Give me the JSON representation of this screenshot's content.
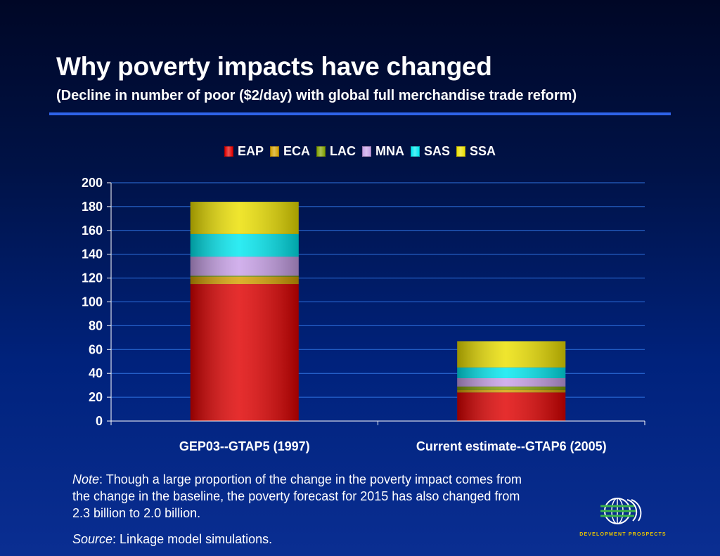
{
  "slide": {
    "title": "Why poverty impacts have changed",
    "subtitle": "(Decline in number of poor ($2/day) with global full merchandise trade reform)"
  },
  "note": {
    "label": "Note",
    "text": ": Though a large proportion of the change in the poverty impact comes from the change in the baseline, the poverty forecast for 2015 has also changed from 2.3 billion to 2.0 billion."
  },
  "source": {
    "label": "Source",
    "text": ": Linkage model simulations."
  },
  "logo": {
    "text": "DEVELOPMENT PROSPECTS"
  },
  "chart_data": {
    "type": "bar",
    "stacked": true,
    "categories": [
      "GEP03--GTAP5 (1997)",
      "Current estimate--GTAP6 (2005)"
    ],
    "series": [
      {
        "name": "EAP",
        "color": "#e00000",
        "values": [
          115,
          24
        ]
      },
      {
        "name": "ECA",
        "color": "#d4a000",
        "values": [
          6,
          2
        ]
      },
      {
        "name": "LAC",
        "color": "#80a000",
        "values": [
          1,
          3
        ]
      },
      {
        "name": "MNA",
        "color": "#c8a0e8",
        "values": [
          16,
          7
        ]
      },
      {
        "name": "SAS",
        "color": "#00e8f0",
        "values": [
          19,
          9
        ]
      },
      {
        "name": "SSA",
        "color": "#ece000",
        "values": [
          27,
          22
        ]
      }
    ],
    "ylim": [
      0,
      200
    ],
    "yticks": [
      0,
      20,
      40,
      60,
      80,
      100,
      120,
      140,
      160,
      180,
      200
    ],
    "grid": true,
    "legend": "top"
  }
}
